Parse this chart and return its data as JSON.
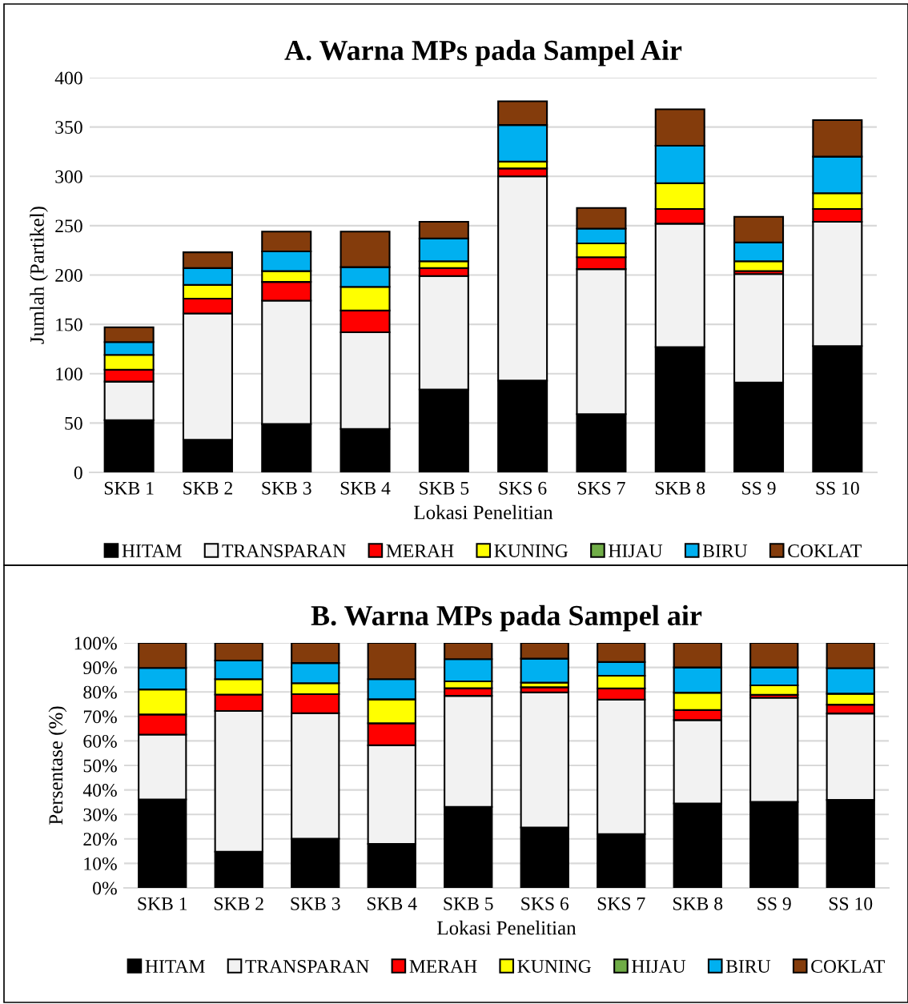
{
  "chart_data": [
    {
      "type": "bar",
      "stacked": true,
      "title": "A. Warna MPs pada Sampel Air",
      "xlabel": "Lokasi Penelitian",
      "ylabel": "Jumlah (Partikel)",
      "categories": [
        "SKB 1",
        "SKB 2",
        "SKB 3",
        "SKB 4",
        "SKB 5",
        "SKS 6",
        "SKS 7",
        "SKB 8",
        "SS 9",
        "SS 10"
      ],
      "series": [
        {
          "name": "HITAM",
          "color": "#000000",
          "values": [
            53,
            33,
            49,
            44,
            84,
            93,
            59,
            127,
            91,
            128
          ]
        },
        {
          "name": "TRANSPARAN",
          "color": "#f2f2f2",
          "values": [
            39,
            128,
            125,
            98,
            115,
            207,
            147,
            125,
            110,
            126
          ]
        },
        {
          "name": "MERAH",
          "color": "#ff0000",
          "values": [
            12,
            15,
            19,
            22,
            8,
            8,
            12,
            15,
            3,
            13
          ]
        },
        {
          "name": "KUNING",
          "color": "#ffff00",
          "values": [
            15,
            14,
            11,
            24,
            7,
            7,
            14,
            26,
            10,
            16
          ]
        },
        {
          "name": "HIJAU",
          "color": "#70ad47",
          "values": [
            null,
            0,
            0,
            0,
            0,
            0,
            0,
            0,
            0,
            0
          ]
        },
        {
          "name": "BIRU",
          "color": "#00b0f0",
          "values": [
            13,
            17,
            20,
            20,
            23,
            37,
            15,
            38,
            19,
            37
          ]
        },
        {
          "name": "COKLAT",
          "color": "#843c0c",
          "values": [
            15,
            16,
            20,
            36,
            17,
            24,
            21,
            37,
            26,
            37
          ]
        }
      ],
      "ylim": [
        0,
        400
      ],
      "yticks": [
        0,
        50,
        100,
        150,
        200,
        250,
        300,
        350,
        400
      ],
      "grid": "y",
      "legend": "bottom"
    },
    {
      "type": "bar",
      "stacked": true,
      "title": "B. Warna MPs pada Sampel air",
      "xlabel": "Lokasi Penelitian",
      "ylabel": "Persentase (%)",
      "categories": [
        "SKB 1",
        "SKB 2",
        "SKB 3",
        "SKB 4",
        "SKB 5",
        "SKS 6",
        "SKS 7",
        "SKB 8",
        "SS 9",
        "SS 10"
      ],
      "series": [
        {
          "name": "HITAM",
          "color": "#000000",
          "values": [
            36.1,
            14.8,
            20.1,
            18.0,
            33.1,
            24.7,
            22.0,
            34.5,
            35.1,
            35.9
          ]
        },
        {
          "name": "TRANSPARAN",
          "color": "#f2f2f2",
          "values": [
            26.5,
            57.4,
            51.2,
            40.2,
            45.3,
            55.1,
            54.9,
            34.0,
            42.5,
            35.3
          ]
        },
        {
          "name": "MERAH",
          "color": "#ff0000",
          "values": [
            8.2,
            6.7,
            7.8,
            9.0,
            3.1,
            2.1,
            4.5,
            4.1,
            1.2,
            3.6
          ]
        },
        {
          "name": "KUNING",
          "color": "#ffff00",
          "values": [
            10.2,
            6.3,
            4.5,
            9.8,
            2.8,
            1.9,
            5.2,
            7.1,
            3.9,
            4.5
          ]
        },
        {
          "name": "HIJAU",
          "color": "#70ad47",
          "values": [
            null,
            0,
            0,
            0,
            0,
            0,
            0,
            0,
            0,
            0
          ]
        },
        {
          "name": "BIRU",
          "color": "#00b0f0",
          "values": [
            8.8,
            7.6,
            8.2,
            8.2,
            9.1,
            9.8,
            5.6,
            10.3,
            7.3,
            10.4
          ]
        },
        {
          "name": "COKLAT",
          "color": "#843c0c",
          "values": [
            10.2,
            7.2,
            8.2,
            14.8,
            6.6,
            6.4,
            7.8,
            10.0,
            10.0,
            10.3
          ]
        }
      ],
      "ylim": [
        0,
        100
      ],
      "yticks": [
        {
          "value": 0,
          "label": "0%"
        },
        {
          "value": 10,
          "label": "10%"
        },
        {
          "value": 20,
          "label": "20%"
        },
        {
          "value": 30,
          "label": "30%"
        },
        {
          "value": 40,
          "label": "40%"
        },
        {
          "value": 50,
          "label": "50%"
        },
        {
          "value": 60,
          "label": "60%"
        },
        {
          "value": 70,
          "label": "70%"
        },
        {
          "value": 80,
          "label": "80%"
        },
        {
          "value": 90,
          "label": "90%"
        },
        {
          "value": 100,
          "label": "100%"
        }
      ],
      "grid": "y",
      "legend": "bottom"
    }
  ]
}
